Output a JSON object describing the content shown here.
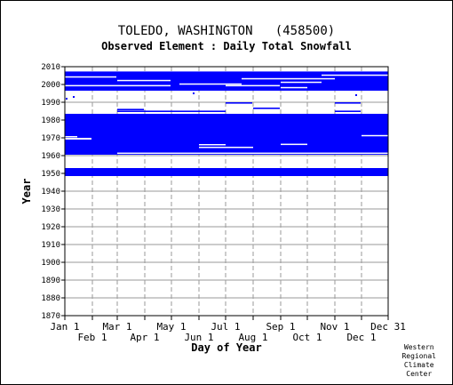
{
  "title": "TOLEDO, WASHINGTON   (458500)",
  "subtitle": "Observed Element : Daily Total Snowfall",
  "credit": [
    "Western",
    "Regional",
    "Climate",
    "Center"
  ],
  "chart_data": {
    "type": "heatmap",
    "title": "TOLEDO, WASHINGTON   (458500)",
    "subtitle": "Observed Element : Daily Total Snowfall",
    "xlabel": "Day of Year",
    "ylabel": "Year",
    "xlim": [
      "Jan 1",
      "Dec 31"
    ],
    "ylim": [
      1870,
      2010
    ],
    "x_ticks_upper": [
      {
        "label": "Jan 1",
        "day": 1
      },
      {
        "label": "Mar 1",
        "day": 60
      },
      {
        "label": "May 1",
        "day": 121
      },
      {
        "label": "Jul 1",
        "day": 182
      },
      {
        "label": "Sep 1",
        "day": 244
      },
      {
        "label": "Nov 1",
        "day": 305
      },
      {
        "label": "Dec 31",
        "day": 365
      }
    ],
    "x_ticks_lower": [
      {
        "label": "Feb 1",
        "day": 32
      },
      {
        "label": "Apr 1",
        "day": 91
      },
      {
        "label": "Jun 1",
        "day": 152
      },
      {
        "label": "Aug 1",
        "day": 213
      },
      {
        "label": "Oct 1",
        "day": 274
      },
      {
        "label": "Dec 1",
        "day": 335
      }
    ],
    "y_ticks": [
      1870,
      1880,
      1890,
      1900,
      1910,
      1920,
      1930,
      1940,
      1950,
      1960,
      1970,
      1980,
      1990,
      2000,
      2010
    ],
    "grid": true,
    "series_color": "#0000ff",
    "data_blocks": [
      {
        "year_from": 1948.5,
        "year_to": 1953.0,
        "day_from": 1,
        "day_to": 365
      },
      {
        "year_from": 1960.5,
        "year_to": 1983.5,
        "day_from": 1,
        "day_to": 365
      },
      {
        "year_from": 1984.5,
        "year_to": 1985.3,
        "day_from": 60,
        "day_to": 182
      },
      {
        "year_from": 1984.5,
        "year_to": 1985.3,
        "day_from": 305,
        "day_to": 334
      },
      {
        "year_from": 1985.5,
        "year_to": 1986.3,
        "day_from": 60,
        "day_to": 90
      },
      {
        "year_from": 1986.2,
        "year_to": 1987.0,
        "day_from": 213,
        "day_to": 243
      },
      {
        "year_from": 1989.2,
        "year_to": 1990.0,
        "day_from": 182,
        "day_to": 212
      },
      {
        "year_from": 1989.2,
        "year_to": 1990.0,
        "day_from": 305,
        "day_to": 334
      },
      {
        "year_from": 1996.5,
        "year_to": 2007.3,
        "day_from": 1,
        "day_to": 365
      }
    ],
    "gaps": [
      {
        "year_from": 1969.0,
        "year_to": 1970.0,
        "day_from": 1,
        "day_to": 31
      },
      {
        "year_from": 1970.3,
        "year_to": 1971.0,
        "day_from": 1,
        "day_to": 15
      },
      {
        "year_from": 1971.0,
        "year_to": 1971.6,
        "day_from": 335,
        "day_to": 365
      },
      {
        "year_from": 1966.0,
        "year_to": 1966.5,
        "day_from": 152,
        "day_to": 182
      },
      {
        "year_from": 1964.3,
        "year_to": 1965.0,
        "day_from": 152,
        "day_to": 213
      },
      {
        "year_from": 1966.2,
        "year_to": 1966.7,
        "day_from": 244,
        "day_to": 274
      },
      {
        "year_from": 1961.0,
        "year_to": 1961.7,
        "day_from": 60,
        "day_to": 365
      },
      {
        "year_from": 1998.0,
        "year_to": 1998.6,
        "day_from": 244,
        "day_to": 274
      },
      {
        "year_from": 1999.0,
        "year_to": 1999.7,
        "day_from": 1,
        "day_to": 120
      },
      {
        "year_from": 1999.0,
        "year_to": 1999.7,
        "day_from": 182,
        "day_to": 243
      },
      {
        "year_from": 2000.0,
        "year_to": 2000.6,
        "day_from": 130,
        "day_to": 200
      },
      {
        "year_from": 2001.0,
        "year_to": 2001.6,
        "day_from": 244,
        "day_to": 290
      },
      {
        "year_from": 2002.0,
        "year_to": 2002.6,
        "day_from": 60,
        "day_to": 120
      },
      {
        "year_from": 2003.0,
        "year_to": 2003.6,
        "day_from": 200,
        "day_to": 305
      },
      {
        "year_from": 2004.0,
        "year_to": 2004.6,
        "day_from": 1,
        "day_to": 59
      },
      {
        "year_from": 2005.0,
        "year_to": 2005.6,
        "day_from": 290,
        "day_to": 365
      }
    ],
    "scattered_marks": [
      {
        "year": 1993.0,
        "day": 10
      },
      {
        "year": 1992.0,
        "day": 2
      },
      {
        "year": 1995.0,
        "day": 145
      },
      {
        "year": 1994.0,
        "day": 328
      }
    ]
  }
}
